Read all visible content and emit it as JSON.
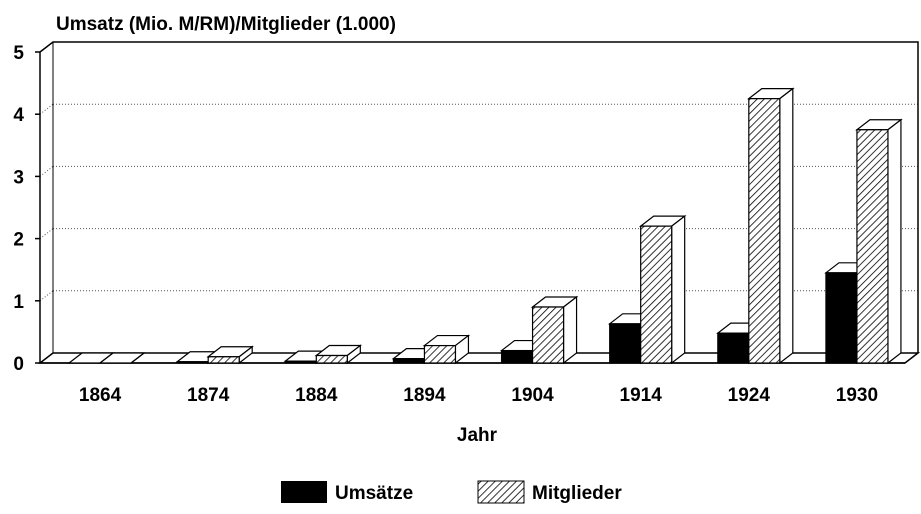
{
  "chart_data": {
    "type": "bar",
    "title": "",
    "ylabel": "Umsatz (Mio. M/RM)/Mitglieder (1.000)",
    "xlabel": "Jahr",
    "ylim": [
      0,
      5
    ],
    "yticks": [
      "0",
      "1",
      "2",
      "3",
      "4",
      "5"
    ],
    "categories": [
      "1864",
      "1874",
      "1884",
      "1894",
      "1904",
      "1914",
      "1924",
      "1930"
    ],
    "series": [
      {
        "name": "Umsätze",
        "values": [
          0.0,
          0.02,
          0.03,
          0.07,
          0.2,
          0.63,
          0.48,
          1.45
        ],
        "color": "#000000",
        "pattern": "solid"
      },
      {
        "name": "Mitglieder",
        "values": [
          0.0,
          0.1,
          0.12,
          0.28,
          0.9,
          2.2,
          4.25,
          3.75
        ],
        "color": "#000000",
        "pattern": "diagonal-hatch"
      }
    ],
    "grid": "dotted horizontal",
    "legend": "bottom",
    "style": "3d"
  }
}
